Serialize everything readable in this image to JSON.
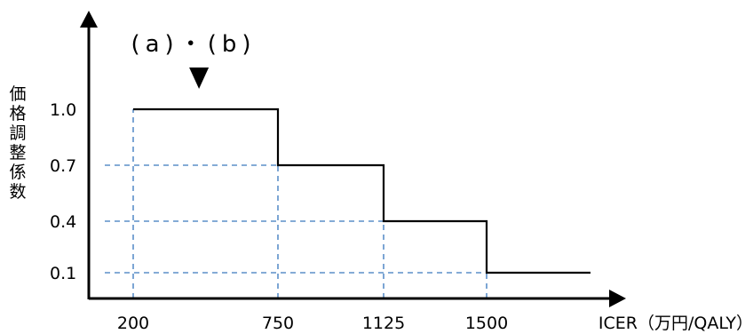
{
  "chart_data": {
    "type": "line",
    "title": "",
    "xlabel": "ICER（万円/QALY）",
    "ylabel": "価格調整係数",
    "annotation": "(a)・(b)",
    "x_ticks": [
      "200",
      "750",
      "1125",
      "1500"
    ],
    "y_ticks": [
      "1.0",
      "0.7",
      "0.4",
      "0.1"
    ],
    "x_tick_values": [
      200,
      750,
      1125,
      1500
    ],
    "y_tick_values": [
      1.0,
      0.7,
      0.4,
      0.1
    ],
    "annotation_x": 450,
    "x_max": 1850,
    "y_max": 1.2,
    "grid": "dashed guides to ticks",
    "series": [
      {
        "color": "#000000",
        "points": [
          [
            200,
            1.0
          ],
          [
            750,
            1.0
          ],
          [
            750,
            0.7
          ],
          [
            1125,
            0.7
          ],
          [
            1125,
            0.4
          ],
          [
            1500,
            0.4
          ],
          [
            1500,
            0.1
          ],
          [
            1850,
            0.1
          ]
        ]
      }
    ],
    "colors": {
      "step": "#000000",
      "guide": "#5b8fc9",
      "axis": "#000000"
    }
  }
}
